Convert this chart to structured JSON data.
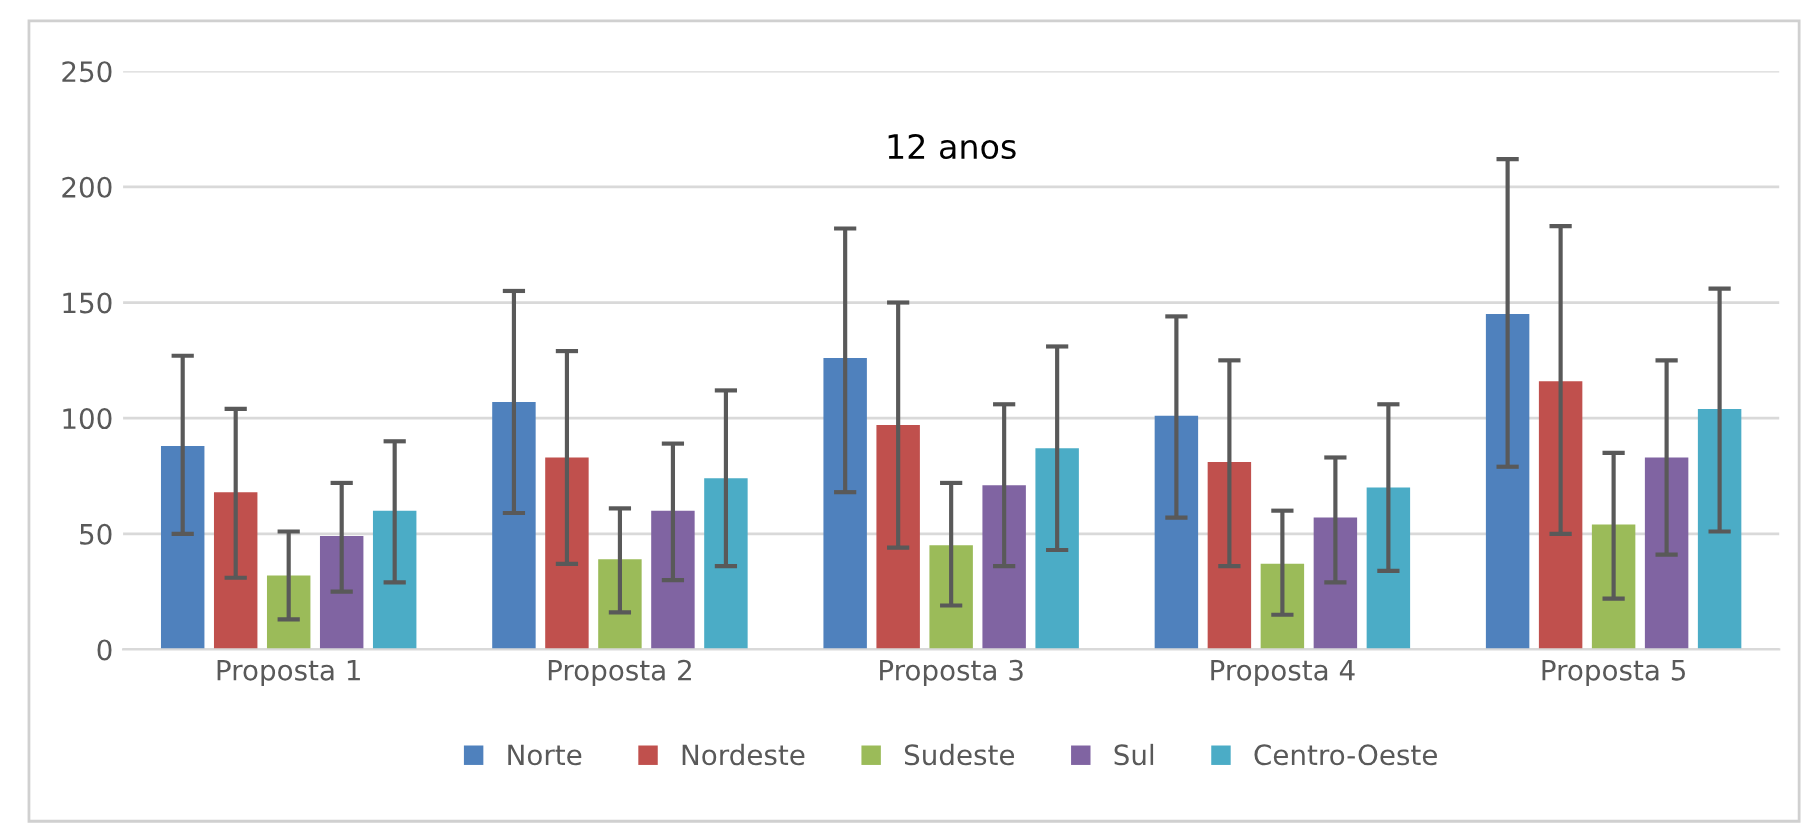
{
  "chart_data": {
    "type": "bar",
    "title": "12 anos",
    "categories": [
      "Proposta 1",
      "Proposta 2",
      "Proposta 3",
      "Proposta 4",
      "Proposta 5"
    ],
    "series": [
      {
        "name": "Norte",
        "color": "#4f81bd",
        "values": [
          88,
          107,
          126,
          101,
          145
        ],
        "errors": [
          [
            50,
            127
          ],
          [
            59,
            155
          ],
          [
            68,
            182
          ],
          [
            57,
            144
          ],
          [
            79,
            212
          ]
        ]
      },
      {
        "name": "Nordeste",
        "color": "#c0504d",
        "values": [
          68,
          83,
          97,
          81,
          116
        ],
        "errors": [
          [
            31,
            104
          ],
          [
            37,
            129
          ],
          [
            44,
            150
          ],
          [
            36,
            125
          ],
          [
            50,
            183
          ]
        ]
      },
      {
        "name": "Sudeste",
        "color": "#9bbb59",
        "values": [
          32,
          39,
          45,
          37,
          54
        ],
        "errors": [
          [
            13,
            51
          ],
          [
            16,
            61
          ],
          [
            19,
            72
          ],
          [
            15,
            60
          ],
          [
            22,
            85
          ]
        ]
      },
      {
        "name": "Sul",
        "color": "#8064a2",
        "values": [
          49,
          60,
          71,
          57,
          83
        ],
        "errors": [
          [
            25,
            72
          ],
          [
            30,
            89
          ],
          [
            36,
            106
          ],
          [
            29,
            83
          ],
          [
            41,
            125
          ]
        ]
      },
      {
        "name": "Centro-Oeste",
        "color": "#4bacc6",
        "values": [
          60,
          74,
          87,
          70,
          104
        ],
        "errors": [
          [
            29,
            90
          ],
          [
            36,
            112
          ],
          [
            43,
            131
          ],
          [
            34,
            106
          ],
          [
            51,
            156
          ]
        ]
      }
    ],
    "ylim": [
      0,
      250
    ],
    "yticks": [
      0,
      50,
      100,
      150,
      200,
      250
    ],
    "grid": "y",
    "legend": "bottom"
  }
}
